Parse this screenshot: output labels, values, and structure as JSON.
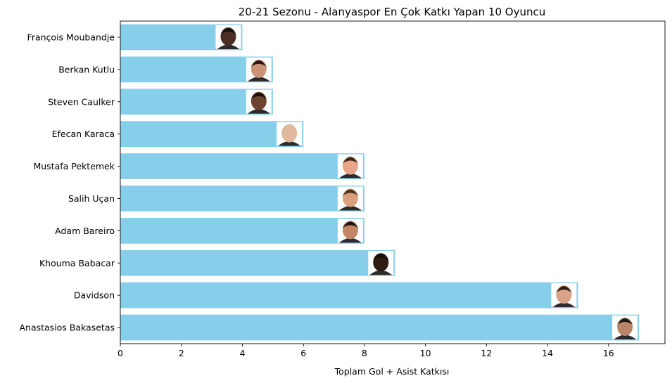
{
  "chart_data": {
    "type": "bar",
    "orientation": "horizontal",
    "title": "20-21 Sezonu - Alanyaspor En Çok Katkı Yapan 10 Oyuncu",
    "xlabel": "Toplam Gol + Asist Katkısı",
    "ylabel": "",
    "categories": [
      "François Moubandje",
      "Berkan Kutlu",
      "Steven Caulker",
      "Efecan Karaca",
      "Mustafa Pektemek",
      "Salih Uçan",
      "Adam Bareiro",
      "Khouma Babacar",
      "Davidson",
      "Anastasios Bakasetas"
    ],
    "values": [
      4,
      5,
      5,
      6,
      8,
      8,
      8,
      9,
      15,
      17
    ],
    "xlim": [
      0,
      17.85
    ],
    "xticks": [
      0,
      2,
      4,
      6,
      8,
      10,
      12,
      14,
      16
    ],
    "bar_color": "#87ceeb",
    "grid": false,
    "legend": "none",
    "player_photo_icon": "player-face-photo"
  }
}
